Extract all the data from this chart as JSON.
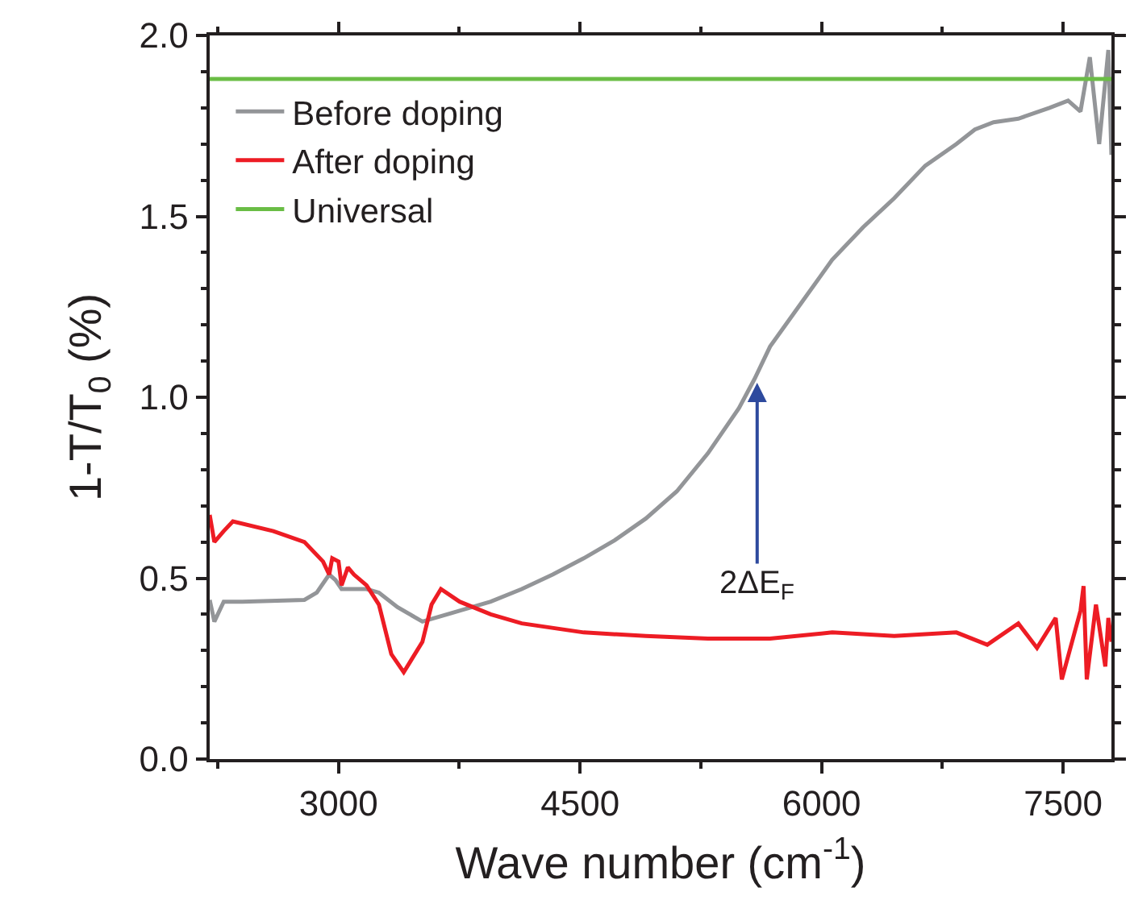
{
  "chart_data": {
    "type": "line",
    "xlabel": "Wave number (cm$^{-1}$)",
    "ylabel": "1-T/T$_{0}$ (%)",
    "xlim": [
      2200,
      7800
    ],
    "ylim": [
      0,
      2.0
    ],
    "xticks": [
      3000,
      4500,
      6000,
      7500
    ],
    "yticks": [
      {
        "value": 0,
        "label": "0.0"
      },
      {
        "value": 0.5,
        "label": "0.5"
      },
      {
        "value": 1.0,
        "label": "1.0"
      },
      {
        "value": 1.5,
        "label": "1.5"
      },
      {
        "value": 2.0,
        "label": "2.0"
      }
    ],
    "legend": "top left",
    "marker": "none",
    "line_style": "solid",
    "annotations": [
      {
        "text": "2ΔE$_{F}$",
        "x": 5600,
        "y": 1.04
      }
    ],
    "series": [
      {
        "name": "Before doping",
        "color": "#939598",
        "x": [
          2200,
          2229,
          2287,
          2402,
          2788,
          2865,
          2942,
          2981,
          3019,
          3174,
          3251,
          3366,
          3521,
          3598,
          3752,
          3945,
          4138,
          4330,
          4523,
          4716,
          4909,
          5101,
          5294,
          5487,
          5583,
          5680,
          5873,
          6066,
          6258,
          6451,
          6644,
          6837,
          6952,
          7068,
          7222,
          7415,
          7531,
          7608,
          7666,
          7724,
          7781,
          7800
        ],
        "values": [
          0.44,
          0.38,
          0.435,
          0.435,
          0.44,
          0.46,
          0.51,
          0.495,
          0.47,
          0.47,
          0.46,
          0.42,
          0.38,
          0.39,
          0.41,
          0.435,
          0.47,
          0.51,
          0.555,
          0.605,
          0.665,
          0.74,
          0.845,
          0.97,
          1.05,
          1.14,
          1.26,
          1.38,
          1.47,
          1.55,
          1.64,
          1.7,
          1.74,
          1.76,
          1.77,
          1.8,
          1.82,
          1.79,
          1.94,
          1.7,
          1.96,
          1.67
        ]
      },
      {
        "name": "After doping",
        "color": "#ed1c24",
        "x": [
          2200,
          2229,
          2287,
          2344,
          2595,
          2788,
          2904,
          2942,
          2961,
          3000,
          3019,
          3058,
          3096,
          3174,
          3251,
          3328,
          3405,
          3521,
          3578,
          3636,
          3752,
          3945,
          4138,
          4523,
          4909,
          5294,
          5680,
          6066,
          6451,
          6837,
          7029,
          7222,
          7338,
          7454,
          7492,
          7608,
          7627,
          7647,
          7704,
          7762,
          7781,
          7800
        ],
        "values": [
          0.675,
          0.6,
          0.63,
          0.657,
          0.63,
          0.6,
          0.546,
          0.51,
          0.555,
          0.546,
          0.48,
          0.53,
          0.51,
          0.48,
          0.427,
          0.29,
          0.24,
          0.324,
          0.427,
          0.47,
          0.435,
          0.4,
          0.375,
          0.35,
          0.34,
          0.333,
          0.333,
          0.35,
          0.34,
          0.35,
          0.316,
          0.375,
          0.307,
          0.39,
          0.22,
          0.41,
          0.478,
          0.22,
          0.427,
          0.256,
          0.39,
          0.324
        ]
      },
      {
        "name": "Universal",
        "color": "#6abd45",
        "x": [
          2200,
          7800
        ],
        "values": [
          1.88,
          1.88
        ]
      }
    ]
  }
}
